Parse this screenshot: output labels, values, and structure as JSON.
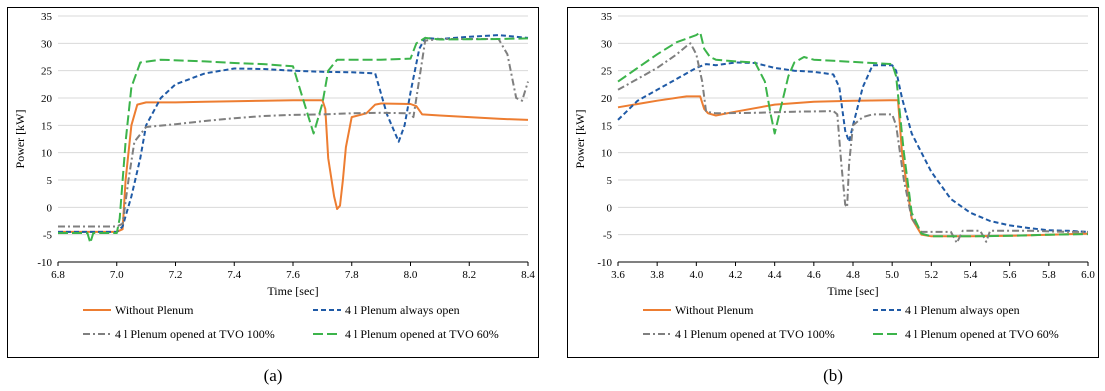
{
  "panel_labels": [
    "(a)",
    "(b)"
  ],
  "chart_data": [
    {
      "type": "line",
      "xlabel": "Time [sec]",
      "ylabel": "Power [kW]",
      "xlim": [
        6.8,
        8.4
      ],
      "ylim": [
        -10,
        35
      ],
      "xticks": [
        "6.8",
        "7.0",
        "7.2",
        "7.4",
        "7.6",
        "7.8",
        "8.0",
        "8.2",
        "8.4"
      ],
      "yticks": [
        "-10",
        "-5",
        "0",
        "5",
        "10",
        "15",
        "20",
        "25",
        "30",
        "35"
      ],
      "grid": "horizontal",
      "legend_position": "bottom",
      "series": [
        {
          "name": "Without Plenum",
          "color": "#ED7D31",
          "dash": "solid",
          "points": [
            [
              6.8,
              -4.5
            ],
            [
              7.0,
              -4.5
            ],
            [
              7.02,
              -4
            ],
            [
              7.03,
              5
            ],
            [
              7.05,
              15
            ],
            [
              7.07,
              18.8
            ],
            [
              7.1,
              19.2
            ],
            [
              7.2,
              19.2
            ],
            [
              7.3,
              19.3
            ],
            [
              7.4,
              19.4
            ],
            [
              7.5,
              19.5
            ],
            [
              7.6,
              19.6
            ],
            [
              7.7,
              19.6
            ],
            [
              7.71,
              18
            ],
            [
              7.72,
              9
            ],
            [
              7.74,
              2
            ],
            [
              7.75,
              -0.3
            ],
            [
              7.76,
              0.3
            ],
            [
              7.77,
              5
            ],
            [
              7.78,
              11
            ],
            [
              7.8,
              16.5
            ],
            [
              7.85,
              17.2
            ],
            [
              7.88,
              18.8
            ],
            [
              7.9,
              19.0
            ],
            [
              8.0,
              18.9
            ],
            [
              8.02,
              18.5
            ],
            [
              8.04,
              17
            ],
            [
              8.1,
              16.8
            ],
            [
              8.2,
              16.5
            ],
            [
              8.3,
              16.2
            ],
            [
              8.4,
              16.0
            ]
          ]
        },
        {
          "name": "4 l Plenum always open",
          "color": "#1F5AA6",
          "dash": "dash",
          "points": [
            [
              6.8,
              -4.5
            ],
            [
              7.0,
              -4.5
            ],
            [
              7.02,
              -3.5
            ],
            [
              7.05,
              2
            ],
            [
              7.08,
              9
            ],
            [
              7.1,
              15
            ],
            [
              7.15,
              20
            ],
            [
              7.2,
              22.5
            ],
            [
              7.3,
              24.5
            ],
            [
              7.4,
              25.4
            ],
            [
              7.5,
              25.3
            ],
            [
              7.6,
              25.0
            ],
            [
              7.7,
              24.8
            ],
            [
              7.8,
              24.7
            ],
            [
              7.88,
              24.5
            ],
            [
              7.92,
              17
            ],
            [
              7.96,
              12
            ],
            [
              7.98,
              15
            ],
            [
              8.0,
              21
            ],
            [
              8.03,
              29
            ],
            [
              8.05,
              31
            ],
            [
              8.1,
              30.8
            ],
            [
              8.2,
              31.2
            ],
            [
              8.3,
              31.5
            ],
            [
              8.4,
              31.0
            ]
          ]
        },
        {
          "name": "4 l Plenum opened at TVO 100%",
          "color": "#7F7F7F",
          "dash": "dashdot",
          "points": [
            [
              6.8,
              -3.5
            ],
            [
              7.0,
              -3.5
            ],
            [
              7.02,
              -3
            ],
            [
              7.04,
              5
            ],
            [
              7.06,
              12
            ],
            [
              7.1,
              14.7
            ],
            [
              7.2,
              15.2
            ],
            [
              7.3,
              15.8
            ],
            [
              7.4,
              16.3
            ],
            [
              7.5,
              16.7
            ],
            [
              7.6,
              16.9
            ],
            [
              7.7,
              17
            ],
            [
              7.8,
              17.2
            ],
            [
              7.9,
              17.3
            ],
            [
              8.0,
              17.2
            ],
            [
              8.01,
              16.5
            ],
            [
              8.02,
              20
            ],
            [
              8.05,
              30.5
            ],
            [
              8.1,
              30.8
            ],
            [
              8.2,
              30.8
            ],
            [
              8.3,
              30.8
            ],
            [
              8.33,
              28
            ],
            [
              8.36,
              20
            ],
            [
              8.38,
              19.5
            ],
            [
              8.4,
              23
            ]
          ]
        },
        {
          "name": "4 l Plenum opened at TVO 60%",
          "color": "#3CB44B",
          "dash": "longdash",
          "points": [
            [
              6.8,
              -4.7
            ],
            [
              6.9,
              -4.7
            ],
            [
              6.91,
              -6.5
            ],
            [
              6.92,
              -4.7
            ],
            [
              7.0,
              -4.7
            ],
            [
              7.01,
              -2
            ],
            [
              7.03,
              12
            ],
            [
              7.05,
              22
            ],
            [
              7.08,
              26.5
            ],
            [
              7.15,
              27.0
            ],
            [
              7.3,
              26.7
            ],
            [
              7.4,
              26.4
            ],
            [
              7.5,
              26.2
            ],
            [
              7.6,
              25.8
            ],
            [
              7.65,
              17
            ],
            [
              7.67,
              13.5
            ],
            [
              7.7,
              19
            ],
            [
              7.72,
              25
            ],
            [
              7.75,
              27.0
            ],
            [
              7.9,
              27.0
            ],
            [
              8.0,
              27.2
            ],
            [
              8.02,
              30
            ],
            [
              8.05,
              31
            ],
            [
              8.1,
              30.7
            ],
            [
              8.3,
              30.8
            ],
            [
              8.4,
              30.9
            ]
          ]
        }
      ]
    },
    {
      "type": "line",
      "xlabel": "Time [sec]",
      "ylabel": "Power [kW]",
      "xlim": [
        3.6,
        6.0
      ],
      "ylim": [
        -10,
        35
      ],
      "xticks": [
        "3.6",
        "3.8",
        "4.0",
        "4.2",
        "4.4",
        "4.6",
        "4.8",
        "5.0",
        "5.2",
        "5.4",
        "5.6",
        "5.8",
        "6.0"
      ],
      "yticks": [
        "-10",
        "-5",
        "0",
        "5",
        "10",
        "15",
        "20",
        "25",
        "30",
        "35"
      ],
      "grid": "horizontal",
      "legend_position": "bottom",
      "series": [
        {
          "name": "Without Plenum",
          "color": "#ED7D31",
          "dash": "solid",
          "points": [
            [
              3.6,
              18.3
            ],
            [
              3.8,
              19.5
            ],
            [
              3.95,
              20.3
            ],
            [
              4.02,
              20.3
            ],
            [
              4.04,
              18
            ],
            [
              4.06,
              17.2
            ],
            [
              4.1,
              16.8
            ],
            [
              4.2,
              17.5
            ],
            [
              4.4,
              18.8
            ],
            [
              4.6,
              19.3
            ],
            [
              4.8,
              19.5
            ],
            [
              5.0,
              19.6
            ],
            [
              5.03,
              19.6
            ],
            [
              5.05,
              10
            ],
            [
              5.1,
              -2
            ],
            [
              5.15,
              -5
            ],
            [
              5.2,
              -5.3
            ],
            [
              5.4,
              -5.3
            ],
            [
              5.6,
              -5.2
            ],
            [
              5.8,
              -5.0
            ],
            [
              6.0,
              -4.8
            ]
          ]
        },
        {
          "name": "4 l Plenum always open",
          "color": "#1F5AA6",
          "dash": "dash",
          "points": [
            [
              3.6,
              16
            ],
            [
              3.7,
              19.5
            ],
            [
              3.8,
              21.5
            ],
            [
              3.9,
              23.5
            ],
            [
              4.0,
              25.5
            ],
            [
              4.05,
              26.2
            ],
            [
              4.1,
              26
            ],
            [
              4.2,
              26.5
            ],
            [
              4.3,
              26.4
            ],
            [
              4.4,
              25.5
            ],
            [
              4.5,
              25
            ],
            [
              4.6,
              24.8
            ],
            [
              4.7,
              24.3
            ],
            [
              4.73,
              22
            ],
            [
              4.76,
              14
            ],
            [
              4.78,
              12
            ],
            [
              4.8,
              15
            ],
            [
              4.85,
              22
            ],
            [
              4.9,
              26
            ],
            [
              4.95,
              26
            ],
            [
              5.0,
              26
            ],
            [
              5.02,
              25
            ],
            [
              5.05,
              20
            ],
            [
              5.1,
              13.5
            ],
            [
              5.2,
              6.5
            ],
            [
              5.3,
              1.5
            ],
            [
              5.4,
              -1
            ],
            [
              5.5,
              -2.5
            ],
            [
              5.6,
              -3.3
            ],
            [
              5.7,
              -3.8
            ],
            [
              5.8,
              -4.2
            ],
            [
              5.9,
              -4.3
            ],
            [
              6.0,
              -4.5
            ]
          ]
        },
        {
          "name": "4 l Plenum opened at TVO 100%",
          "color": "#7F7F7F",
          "dash": "dashdot",
          "points": [
            [
              3.6,
              21.5
            ],
            [
              3.7,
              23.5
            ],
            [
              3.8,
              25.5
            ],
            [
              3.9,
              28
            ],
            [
              3.95,
              29.5
            ],
            [
              3.97,
              30
            ],
            [
              4.0,
              28
            ],
            [
              4.03,
              23
            ],
            [
              4.05,
              17.5
            ],
            [
              4.1,
              17.2
            ],
            [
              4.3,
              17.3
            ],
            [
              4.5,
              17.5
            ],
            [
              4.7,
              17.6
            ],
            [
              4.72,
              17
            ],
            [
              4.74,
              8
            ],
            [
              4.76,
              0.5
            ],
            [
              4.77,
              0
            ],
            [
              4.78,
              8
            ],
            [
              4.8,
              15
            ],
            [
              4.85,
              16.5
            ],
            [
              4.9,
              17
            ],
            [
              5.0,
              17
            ],
            [
              5.02,
              15
            ],
            [
              5.06,
              5
            ],
            [
              5.1,
              -2
            ],
            [
              5.15,
              -4.5
            ],
            [
              5.3,
              -4.5
            ],
            [
              5.33,
              -6.5
            ],
            [
              5.36,
              -4.3
            ],
            [
              5.45,
              -4.3
            ],
            [
              5.48,
              -6.3
            ],
            [
              5.5,
              -4.3
            ],
            [
              5.7,
              -4.3
            ],
            [
              5.9,
              -4.5
            ],
            [
              6.0,
              -4.5
            ]
          ]
        },
        {
          "name": "4 l Plenum opened at TVO 60%",
          "color": "#3CB44B",
          "dash": "longdash",
          "points": [
            [
              3.6,
              23
            ],
            [
              3.7,
              25.5
            ],
            [
              3.8,
              28
            ],
            [
              3.9,
              30.2
            ],
            [
              4.0,
              31.5
            ],
            [
              4.02,
              32
            ],
            [
              4.04,
              29
            ],
            [
              4.07,
              27.5
            ],
            [
              4.1,
              27
            ],
            [
              4.2,
              26.7
            ],
            [
              4.3,
              26.5
            ],
            [
              4.35,
              23
            ],
            [
              4.38,
              17
            ],
            [
              4.4,
              13.5
            ],
            [
              4.43,
              18
            ],
            [
              4.47,
              24
            ],
            [
              4.5,
              26.5
            ],
            [
              4.55,
              27.5
            ],
            [
              4.6,
              27
            ],
            [
              4.7,
              26.8
            ],
            [
              4.8,
              26.6
            ],
            [
              4.9,
              26.4
            ],
            [
              5.0,
              26.2
            ],
            [
              5.02,
              24
            ],
            [
              5.06,
              10
            ],
            [
              5.1,
              -1
            ],
            [
              5.15,
              -4.8
            ],
            [
              5.2,
              -5.3
            ],
            [
              5.4,
              -5.3
            ],
            [
              5.6,
              -5.2
            ],
            [
              5.8,
              -5.0
            ],
            [
              6.0,
              -4.9
            ]
          ]
        }
      ]
    }
  ]
}
